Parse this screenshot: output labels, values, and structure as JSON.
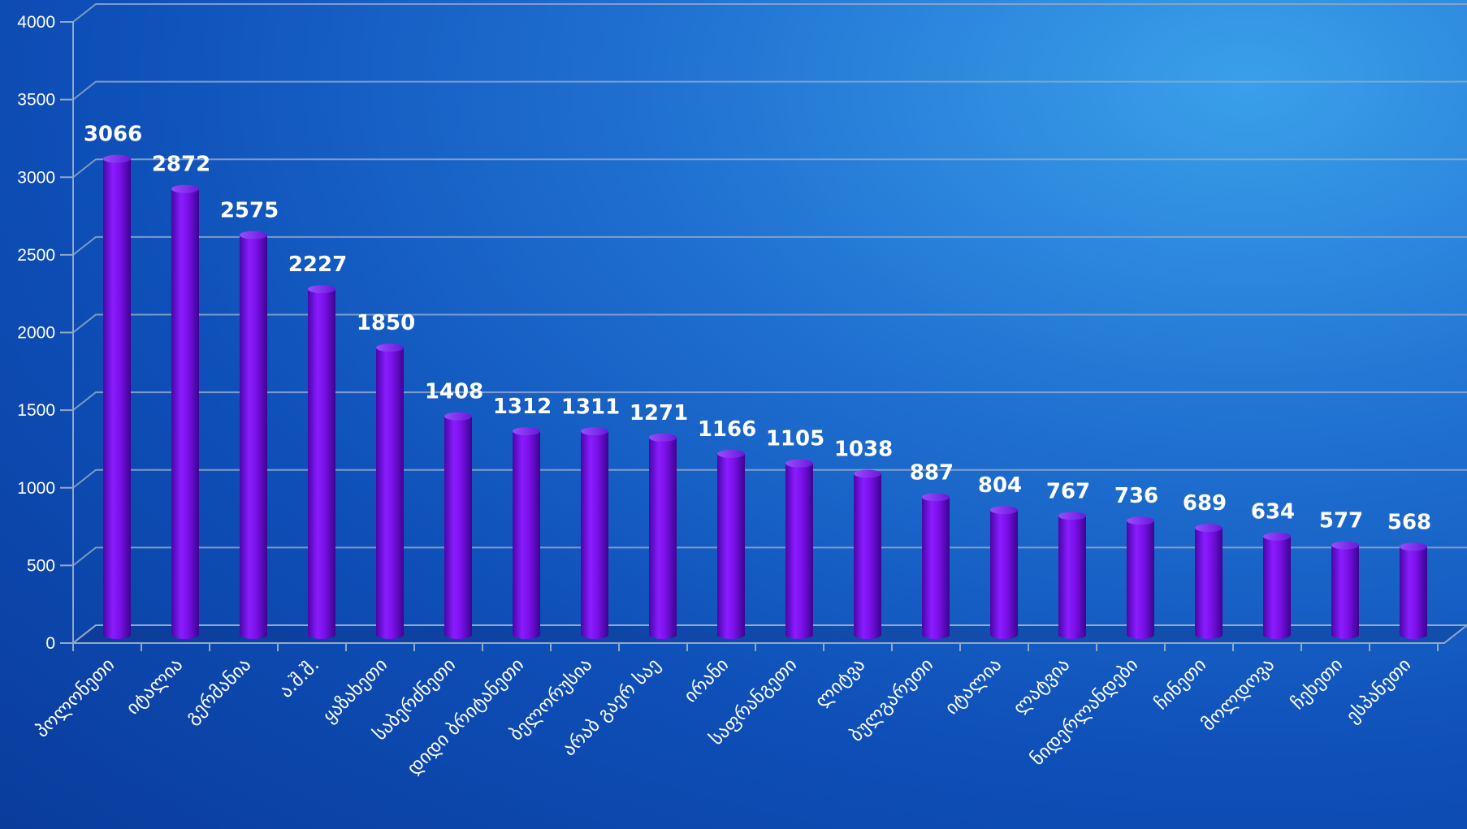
{
  "chart_data": {
    "type": "bar",
    "title": "",
    "xlabel": "",
    "ylabel": "",
    "ylim": [
      0,
      4000
    ],
    "yticks": [
      0,
      500,
      1000,
      1500,
      2000,
      2500,
      3000,
      3500,
      4000
    ],
    "grid": true,
    "legend": "none",
    "bar_color": "#7a10e8",
    "categories": [
      "პოლონეთი",
      "იტალია",
      "გერმანია",
      "ა.შ.შ.",
      "ყაზახეთი",
      "საბერძნეთი",
      "დიდი ბრიტანეთი",
      "ბელორუსია",
      "არაბ გაერ საე",
      "ირანი",
      "საფრანგეთი",
      "ლიტვა",
      "ბულგარეთი",
      "იტალია",
      "ლატვია",
      "ნიდერლანდები",
      "ჩინეთი",
      "მოლდოვა",
      "ჩეხეთი",
      "ესპანეთი"
    ],
    "values": [
      3066,
      2872,
      2575,
      2227,
      1850,
      1408,
      1312,
      1311,
      1271,
      1166,
      1105,
      1038,
      887,
      804,
      767,
      736,
      689,
      634,
      577,
      568
    ],
    "value_labels": [
      "3066",
      "2872",
      "2575",
      "2227",
      "1850",
      "1408",
      "1312",
      "1311",
      "1271",
      "1166",
      "1105",
      "1038",
      "887",
      "804",
      "767",
      "736",
      "689",
      "634",
      "577",
      "568"
    ]
  }
}
